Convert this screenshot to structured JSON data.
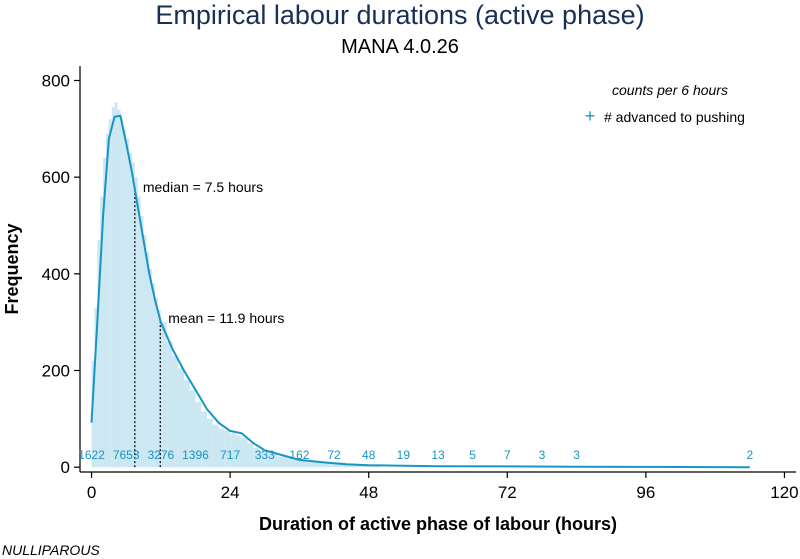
{
  "title": "Empirical labour durations (active phase)",
  "subtitle": "MANA 4.0.26",
  "corner_note": "NULLIPAROUS",
  "legend": {
    "title": "counts per 6 hours",
    "entry": "# advanced to pushing",
    "marker": "+"
  },
  "annotations": {
    "median": "median =  7.5 hours",
    "mean": "mean = 11.9 hours"
  },
  "colors": {
    "line": "#1a94c4",
    "bars": "#cbe7f2",
    "axis": "#000000",
    "counts": "#1a94c4",
    "title": "#1a2f55"
  },
  "chart_data": {
    "type": "line",
    "xlabel": "Duration of active phase of labour (hours)",
    "ylabel": "Frequency",
    "xlim": [
      -2,
      122
    ],
    "ylim": [
      -10,
      830
    ],
    "xticks": [
      0,
      24,
      48,
      72,
      96,
      120
    ],
    "yticks": [
      0,
      200,
      400,
      600,
      800
    ],
    "median_x": 7.5,
    "mean_x": 11.9,
    "density_series": {
      "x": [
        0,
        1,
        2,
        3,
        4,
        5,
        6,
        7,
        8,
        9,
        10,
        11,
        12,
        14,
        16,
        18,
        20,
        22,
        24,
        26,
        28,
        30,
        33,
        36,
        40,
        44,
        48,
        54,
        60,
        72,
        84,
        96,
        114
      ],
      "y": [
        92,
        300,
        520,
        680,
        725,
        727,
        670,
        610,
        540,
        470,
        400,
        345,
        300,
        245,
        200,
        160,
        120,
        92,
        75,
        70,
        50,
        35,
        25,
        15,
        10,
        6,
        4,
        3,
        2,
        1.5,
        1,
        0.5,
        0
      ]
    },
    "histogram": {
      "x": [
        0,
        0.5,
        1,
        1.5,
        2,
        2.5,
        3,
        3.5,
        4,
        4.5,
        5,
        5.5,
        6,
        6.5,
        7,
        7.5,
        8,
        8.5,
        9,
        9.5,
        10,
        10.5,
        11,
        11.5,
        12,
        13,
        14,
        15,
        16,
        17,
        18,
        19,
        20,
        21,
        22,
        23,
        24,
        25,
        26,
        27,
        28,
        29,
        30,
        32,
        34,
        36,
        38,
        40,
        44,
        48
      ],
      "y": [
        220,
        330,
        470,
        560,
        640,
        690,
        720,
        745,
        755,
        740,
        720,
        700,
        680,
        650,
        630,
        600,
        560,
        520,
        480,
        445,
        410,
        380,
        350,
        325,
        300,
        260,
        230,
        205,
        180,
        160,
        135,
        115,
        100,
        88,
        80,
        75,
        70,
        65,
        60,
        50,
        40,
        35,
        28,
        22,
        18,
        14,
        12,
        10,
        6,
        4
      ]
    },
    "counts_per_6h": {
      "x": [
        0,
        6,
        12,
        18,
        24,
        30,
        36,
        42,
        48,
        54,
        60,
        66,
        72,
        78,
        84,
        114
      ],
      "labels": [
        "1622",
        "7653",
        "3276",
        "1396",
        "717",
        "333",
        "162",
        "72",
        "48",
        "19",
        "13",
        "5",
        "7",
        "3",
        "3",
        "2"
      ]
    }
  }
}
